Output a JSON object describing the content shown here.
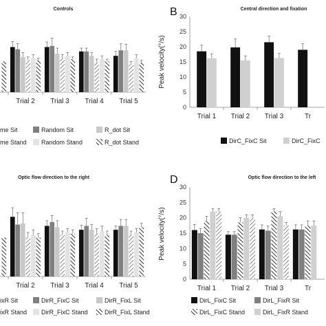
{
  "chart_data": [
    {
      "panel": "",
      "type": "bar",
      "title": "Controls",
      "ylabel": "",
      "ylim": [
        0,
        35
      ],
      "categories": [
        "",
        "Trial 2",
        "Trial 3",
        "Trial 4",
        "Trial 5"
      ],
      "series": [
        {
          "name": "me Sit",
          "color": "#111111",
          "pattern": "solid",
          "values": [
            null,
            20.5,
            20.5,
            18.5,
            16.5
          ],
          "errors": [
            null,
            2.5,
            2.3,
            1.5,
            2.0
          ]
        },
        {
          "name": "Random Sit",
          "color": "#7f7f7f",
          "pattern": "solid",
          "values": [
            null,
            19.5,
            21,
            18.5,
            19
          ],
          "errors": [
            null,
            2.5,
            3.5,
            1.5,
            3.0
          ]
        },
        {
          "name": "R_dot Sit",
          "color": "#c8c8c8",
          "pattern": "solid",
          "values": [
            null,
            16,
            17.5,
            16.5,
            19
          ],
          "errors": [
            null,
            2.0,
            2.5,
            1.5,
            2.8
          ]
        },
        {
          "name": "me Stand",
          "color": "#c8c8c8",
          "pattern": "hatch",
          "values": [
            null,
            14.5,
            15.5,
            13.5,
            12.5
          ],
          "errors": [
            null,
            1.5,
            1.5,
            1.5,
            1.5
          ]
        },
        {
          "name": "Random Stand",
          "color": "#e3e3e3",
          "pattern": "solid",
          "values": [
            null,
            15.5,
            16.5,
            15,
            15.5
          ],
          "errors": [
            null,
            1.5,
            1.5,
            1.5,
            1.5
          ]
        },
        {
          "name": "R_dot Stand",
          "color": "#7f7f7f",
          "pattern": "hatch",
          "values": [
            14,
            14.5,
            15,
            14,
            13.5
          ],
          "errors": [
            0,
            1.0,
            1.0,
            1.0,
            1.0
          ]
        }
      ]
    },
    {
      "panel": "B",
      "type": "bar",
      "title": "Central direction and fixation",
      "ylabel": "Peak velocity(°/s)",
      "ylim": [
        0,
        30
      ],
      "yticks": [
        "0",
        "5",
        "10",
        "15",
        "20",
        "25",
        "30"
      ],
      "categories": [
        "Trial 1",
        "Trial 2",
        "Trial 3",
        "Tr"
      ],
      "series": [
        {
          "name": "DirC_FixC Sit",
          "color": "#111111",
          "pattern": "solid",
          "values": [
            18.5,
            19.8,
            21.5,
            19.0
          ],
          "errors": [
            2.0,
            2.8,
            2.0,
            2.0
          ]
        },
        {
          "name": "DirC_FixC",
          "color": "#d0d0d0",
          "pattern": "solid",
          "values": [
            16.2,
            15.5,
            16.3,
            null
          ],
          "errors": [
            1.5,
            1.5,
            1.5,
            null
          ]
        }
      ]
    },
    {
      "panel": "",
      "type": "bar",
      "title": "Optic flow direction to the right",
      "ylabel": "",
      "ylim": [
        0,
        35
      ],
      "categories": [
        "",
        "Trial 2",
        "Trial 3",
        "Trial 4",
        "Trial 5"
      ],
      "series": [
        {
          "name": "ixR Sit",
          "color": "#111111",
          "pattern": "solid",
          "values": [
            null,
            23,
            19.5,
            18,
            18
          ],
          "errors": [
            null,
            3.5,
            2.0,
            1.8,
            1.5
          ]
        },
        {
          "name": "DirR_FixC Sit",
          "color": "#7f7f7f",
          "pattern": "solid",
          "values": [
            null,
            20,
            21,
            19.5,
            19.5
          ],
          "errors": [
            null,
            4.5,
            2.5,
            3.0,
            2.5
          ]
        },
        {
          "name": "DirR_FixL Sit",
          "color": "#c8c8c8",
          "pattern": "solid",
          "values": [
            null,
            20.5,
            19,
            18,
            19.5
          ],
          "errors": [
            null,
            4.0,
            2.5,
            2.0,
            2.5
          ]
        },
        {
          "name": "ixR Stand",
          "color": "#c8c8c8",
          "pattern": "hatch",
          "values": [
            null,
            15,
            16,
            16.5,
            16
          ],
          "errors": [
            null,
            2.0,
            1.5,
            2.0,
            1.5
          ]
        },
        {
          "name": "DirR_FixC Stand",
          "color": "#e3e3e3",
          "pattern": "solid",
          "values": [
            null,
            16,
            17,
            17.5,
            17
          ],
          "errors": [
            null,
            2.0,
            1.5,
            2.0,
            1.5
          ]
        },
        {
          "name": "DirR_FixL Stand",
          "color": "#7f7f7f",
          "pattern": "hatch",
          "values": [
            15,
            15,
            16.5,
            16,
            19
          ],
          "errors": [
            0,
            1.5,
            1.5,
            1.5,
            1.5
          ]
        }
      ]
    },
    {
      "panel": "D",
      "type": "bar",
      "title": "Optic flow direction to the left",
      "ylabel": "Peak velocity(°/s)",
      "ylim": [
        0,
        30
      ],
      "yticks": [
        "0",
        "5",
        "10",
        "15",
        "20",
        "25",
        "30"
      ],
      "categories": [
        "Trial 1",
        "Trial 2",
        "Trial 3",
        "Tr"
      ],
      "series": [
        {
          "name": "DirL_FixC Sit",
          "color": "#111111",
          "pattern": "solid",
          "values": [
            16,
            14.5,
            16.2,
            16.2
          ],
          "errors": [
            1.8,
            1.0,
            1.5,
            1.5
          ]
        },
        {
          "name": "DirL_FixR Sit",
          "color": "#7f7f7f",
          "pattern": "solid",
          "values": [
            15,
            14.5,
            15.8,
            16.2
          ],
          "errors": [
            1.5,
            1.0,
            1.5,
            1.5
          ]
        },
        {
          "name": "DirL_FixC Stand",
          "color": "#555555",
          "pattern": "hatch",
          "values": [
            19,
            18.5,
            22,
            17.5
          ],
          "errors": [
            1.5,
            1.5,
            1.0,
            1.5
          ]
        },
        {
          "name": "DirL_FixR Stand",
          "color": "#d0d0d0",
          "pattern": "solid",
          "values": [
            22,
            20,
            20.5,
            17.5
          ],
          "errors": [
            1.0,
            1.0,
            1.5,
            1.5
          ]
        },
        {
          "name": "",
          "color": "#9a9a9a",
          "pattern": "hatch",
          "values": [
            22,
            20,
            17.5,
            null
          ],
          "errors": [
            1.0,
            1.0,
            1.0,
            null
          ]
        }
      ]
    }
  ]
}
